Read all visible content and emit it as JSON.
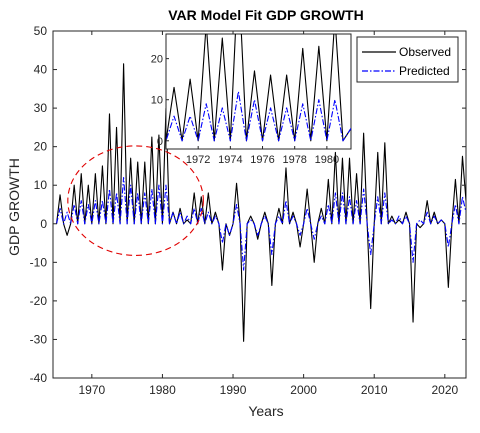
{
  "chart_data": {
    "type": "line",
    "title": "VAR Model Fit GDP GROWTH",
    "xlabel": "Years",
    "ylabel": "GDP GROWTH",
    "xlim": [
      1964.5,
      2023
    ],
    "ylim": [
      -40,
      50
    ],
    "xticks": [
      1970,
      1980,
      1990,
      2000,
      2010,
      2020
    ],
    "yticks": [
      -40,
      -30,
      -20,
      -10,
      0,
      10,
      20,
      30,
      40,
      50
    ],
    "grid": false,
    "legend_position": "top-right",
    "colors": {
      "observed": "#000000",
      "predicted": "#0000ff",
      "highlight": "#e00000"
    },
    "series": [
      {
        "name": "Observed",
        "style": "solid",
        "points": [
          [
            1965.0,
            0
          ],
          [
            1965.5,
            7.5
          ],
          [
            1966.0,
            0
          ],
          [
            1966.5,
            -3
          ],
          [
            1967.0,
            0
          ],
          [
            1967.5,
            10
          ],
          [
            1968.0,
            0
          ],
          [
            1968.5,
            13
          ],
          [
            1969.0,
            0
          ],
          [
            1969.5,
            10
          ],
          [
            1970.0,
            0
          ],
          [
            1970.5,
            13
          ],
          [
            1971.0,
            0
          ],
          [
            1971.5,
            15
          ],
          [
            1972.0,
            0
          ],
          [
            1972.5,
            28.5
          ],
          [
            1973.0,
            0
          ],
          [
            1973.5,
            25
          ],
          [
            1974.0,
            0
          ],
          [
            1974.5,
            41.5
          ],
          [
            1975.0,
            0
          ],
          [
            1975.5,
            17
          ],
          [
            1976.0,
            0
          ],
          [
            1976.5,
            16
          ],
          [
            1977.0,
            0
          ],
          [
            1977.5,
            16
          ],
          [
            1978.0,
            0
          ],
          [
            1978.5,
            22.5
          ],
          [
            1979.0,
            0
          ],
          [
            1979.5,
            23
          ],
          [
            1980.0,
            0
          ],
          [
            1980.5,
            30
          ],
          [
            1981.0,
            0
          ],
          [
            1981.5,
            3
          ],
          [
            1982.0,
            0
          ],
          [
            1982.5,
            4
          ],
          [
            1983.0,
            0
          ],
          [
            1983.5,
            1
          ],
          [
            1984.0,
            0
          ],
          [
            1984.5,
            8
          ],
          [
            1985.0,
            0
          ],
          [
            1985.5,
            7
          ],
          [
            1986.0,
            0
          ],
          [
            1986.5,
            8
          ],
          [
            1987.0,
            0
          ],
          [
            1987.5,
            3
          ],
          [
            1988.0,
            0
          ],
          [
            1988.5,
            -12
          ],
          [
            1989.0,
            0
          ],
          [
            1989.5,
            -3
          ],
          [
            1990.0,
            0
          ],
          [
            1990.5,
            10.5
          ],
          [
            1991.0,
            0
          ],
          [
            1991.5,
            -30.5
          ],
          [
            1992.0,
            0
          ],
          [
            1992.5,
            2
          ],
          [
            1993.0,
            0
          ],
          [
            1993.5,
            -4
          ],
          [
            1994.0,
            0
          ],
          [
            1994.5,
            3
          ],
          [
            1995.0,
            0
          ],
          [
            1995.5,
            -16
          ],
          [
            1996.0,
            0
          ],
          [
            1996.5,
            4
          ],
          [
            1997.0,
            0
          ],
          [
            1997.5,
            14.5
          ],
          [
            1998.0,
            0
          ],
          [
            1998.5,
            3
          ],
          [
            1999.0,
            0
          ],
          [
            1999.5,
            -6
          ],
          [
            2000.0,
            0
          ],
          [
            2000.5,
            9
          ],
          [
            2001.0,
            0
          ],
          [
            2001.5,
            -10
          ],
          [
            2002.0,
            0
          ],
          [
            2002.5,
            4
          ],
          [
            2003.0,
            0
          ],
          [
            2003.5,
            11.5
          ],
          [
            2004.0,
            0
          ],
          [
            2004.5,
            18.5
          ],
          [
            2005.0,
            0
          ],
          [
            2005.5,
            17
          ],
          [
            2006.0,
            0
          ],
          [
            2006.5,
            17
          ],
          [
            2007.0,
            0
          ],
          [
            2007.5,
            13
          ],
          [
            2008.0,
            0
          ],
          [
            2008.5,
            23.5
          ],
          [
            2009.0,
            0
          ],
          [
            2009.5,
            -22
          ],
          [
            2010.0,
            0
          ],
          [
            2010.5,
            18.5
          ],
          [
            2011.0,
            0
          ],
          [
            2011.5,
            21
          ],
          [
            2012.0,
            0
          ],
          [
            2012.5,
            2
          ],
          [
            2013.0,
            0
          ],
          [
            2013.5,
            1
          ],
          [
            2014.0,
            0
          ],
          [
            2014.5,
            3
          ],
          [
            2015.0,
            0
          ],
          [
            2015.5,
            -25.5
          ],
          [
            2016.0,
            0
          ],
          [
            2016.5,
            -1
          ],
          [
            2017.0,
            0
          ],
          [
            2017.5,
            6
          ],
          [
            2018.0,
            0
          ],
          [
            2018.5,
            3
          ],
          [
            2019.0,
            0
          ],
          [
            2019.5,
            1
          ],
          [
            2020.0,
            0
          ],
          [
            2020.5,
            -16.5
          ],
          [
            2021.0,
            0
          ],
          [
            2021.5,
            11.5
          ],
          [
            2022.0,
            0
          ],
          [
            2022.5,
            17.5
          ],
          [
            2023.0,
            6
          ]
        ]
      },
      {
        "name": "Predicted",
        "style": "dash-dot",
        "points": [
          [
            1965.0,
            0
          ],
          [
            1965.5,
            4
          ],
          [
            1966.0,
            0
          ],
          [
            1966.5,
            3
          ],
          [
            1967.0,
            0
          ],
          [
            1967.5,
            5
          ],
          [
            1968.0,
            0
          ],
          [
            1968.5,
            6
          ],
          [
            1969.0,
            0
          ],
          [
            1969.5,
            5
          ],
          [
            1970.0,
            0
          ],
          [
            1970.5,
            6
          ],
          [
            1971.0,
            0
          ],
          [
            1971.5,
            6
          ],
          [
            1972.0,
            0
          ],
          [
            1972.5,
            9
          ],
          [
            1973.0,
            0
          ],
          [
            1973.5,
            8
          ],
          [
            1974.0,
            0
          ],
          [
            1974.5,
            12
          ],
          [
            1975.0,
            0
          ],
          [
            1975.5,
            10
          ],
          [
            1976.0,
            0
          ],
          [
            1976.5,
            8
          ],
          [
            1977.0,
            0
          ],
          [
            1977.5,
            8
          ],
          [
            1978.0,
            0
          ],
          [
            1978.5,
            9
          ],
          [
            1979.0,
            0
          ],
          [
            1979.5,
            10
          ],
          [
            1980.0,
            0
          ],
          [
            1980.5,
            10
          ],
          [
            1981.0,
            0
          ],
          [
            1981.5,
            3
          ],
          [
            1982.0,
            0
          ],
          [
            1982.5,
            3
          ],
          [
            1983.0,
            0
          ],
          [
            1983.5,
            2
          ],
          [
            1984.0,
            0
          ],
          [
            1984.5,
            4
          ],
          [
            1985.0,
            0
          ],
          [
            1985.5,
            4
          ],
          [
            1986.0,
            0
          ],
          [
            1986.5,
            3
          ],
          [
            1987.0,
            0
          ],
          [
            1987.5,
            2
          ],
          [
            1988.0,
            0
          ],
          [
            1988.5,
            -5
          ],
          [
            1989.0,
            0
          ],
          [
            1989.5,
            -3
          ],
          [
            1990.0,
            0
          ],
          [
            1990.5,
            5
          ],
          [
            1991.0,
            0
          ],
          [
            1991.5,
            -12
          ],
          [
            1992.0,
            0
          ],
          [
            1992.5,
            1
          ],
          [
            1993.0,
            0
          ],
          [
            1993.5,
            -3
          ],
          [
            1994.0,
            0
          ],
          [
            1994.5,
            2
          ],
          [
            1995.0,
            0
          ],
          [
            1995.5,
            -8
          ],
          [
            1996.0,
            0
          ],
          [
            1996.5,
            2
          ],
          [
            1997.0,
            0
          ],
          [
            1997.5,
            6
          ],
          [
            1998.0,
            0
          ],
          [
            1998.5,
            2
          ],
          [
            1999.0,
            0
          ],
          [
            1999.5,
            -3
          ],
          [
            2000.0,
            0
          ],
          [
            2000.5,
            4
          ],
          [
            2001.0,
            0
          ],
          [
            2001.5,
            -4
          ],
          [
            2002.0,
            0
          ],
          [
            2002.5,
            2
          ],
          [
            2003.0,
            0
          ],
          [
            2003.5,
            5
          ],
          [
            2004.0,
            0
          ],
          [
            2004.5,
            8
          ],
          [
            2005.0,
            0
          ],
          [
            2005.5,
            8
          ],
          [
            2006.0,
            0
          ],
          [
            2006.5,
            7
          ],
          [
            2007.0,
            0
          ],
          [
            2007.5,
            6
          ],
          [
            2008.0,
            0
          ],
          [
            2008.5,
            9
          ],
          [
            2009.0,
            0
          ],
          [
            2009.5,
            -8
          ],
          [
            2010.0,
            0
          ],
          [
            2010.5,
            7
          ],
          [
            2011.0,
            0
          ],
          [
            2011.5,
            8
          ],
          [
            2012.0,
            0
          ],
          [
            2012.5,
            1
          ],
          [
            2013.0,
            0
          ],
          [
            2013.5,
            2
          ],
          [
            2014.0,
            0
          ],
          [
            2014.5,
            2
          ],
          [
            2015.0,
            0
          ],
          [
            2015.5,
            -10
          ],
          [
            2016.0,
            0
          ],
          [
            2016.5,
            1
          ],
          [
            2017.0,
            0
          ],
          [
            2017.5,
            3
          ],
          [
            2018.0,
            0
          ],
          [
            2018.5,
            2
          ],
          [
            2019.0,
            0
          ],
          [
            2019.5,
            1
          ],
          [
            2020.0,
            0
          ],
          [
            2020.5,
            -6
          ],
          [
            2021.0,
            0
          ],
          [
            2021.5,
            5
          ],
          [
            2022.0,
            0
          ],
          [
            2022.5,
            7
          ],
          [
            2023.0,
            3
          ]
        ]
      }
    ],
    "highlight_ellipse": {
      "center": [
        1976.2,
        6
      ],
      "radius_years": 9.6,
      "radius_units": 14.2
    },
    "inset": {
      "xlim": [
        1970,
        1981.5
      ],
      "ylim": [
        -2,
        26
      ],
      "xticks": [
        1972,
        1974,
        1976,
        1978,
        1980
      ],
      "yticks": [
        0,
        10,
        20
      ]
    }
  }
}
